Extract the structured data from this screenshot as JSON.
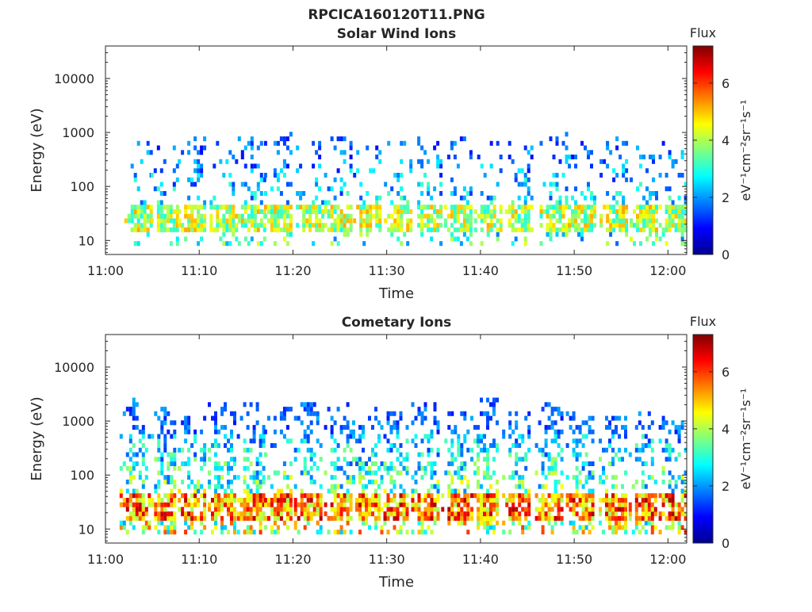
{
  "figure": {
    "title": "RPCICA160120T11.PNG"
  },
  "chart_data": [
    {
      "type": "heatmap",
      "title": "Solar Wind Ions",
      "xlabel": "Time",
      "ylabel": "Energy (eV)",
      "x_ticks": [
        "11:00",
        "11:10",
        "11:20",
        "11:30",
        "11:40",
        "11:50",
        "12:00"
      ],
      "xlim_minutes": [
        0,
        62
      ],
      "y_ticks": [
        "10",
        "100",
        "1000",
        "10000"
      ],
      "y_scale": "log",
      "ylim": [
        5.5,
        40000
      ],
      "colorbar": {
        "title": "Flux",
        "label": "eV⁻¹cm⁻²sr⁻¹s⁻¹",
        "ticks": [
          "0",
          "2",
          "4",
          "6"
        ],
        "range": [
          0,
          7.3
        ]
      },
      "bursts_minute": [
        3.7,
        6.5,
        9.4,
        12.8,
        15.8,
        18.6,
        22,
        25,
        28.1,
        31.4,
        34.6,
        37.8,
        41,
        44.3,
        48,
        51,
        54.4,
        57.6,
        60.7
      ],
      "peak_flux": 5.2,
      "max_energy_eV": 800
    },
    {
      "type": "heatmap",
      "title": "Cometary Ions",
      "xlabel": "Time",
      "ylabel": "Energy (eV)",
      "x_ticks": [
        "11:00",
        "11:10",
        "11:20",
        "11:30",
        "11:40",
        "11:50",
        "12:00"
      ],
      "xlim_minutes": [
        0,
        62
      ],
      "y_ticks": [
        "10",
        "100",
        "1000",
        "10000"
      ],
      "y_scale": "log",
      "ylim": [
        5.5,
        40000
      ],
      "colorbar": {
        "title": "Flux",
        "label": "eV⁻¹cm⁻²sr⁻¹s⁻¹",
        "ticks": [
          "0",
          "2",
          "4",
          "6"
        ],
        "range": [
          0,
          7.3
        ]
      },
      "bursts_minute": [
        3.2,
        6.2,
        9.4,
        12.6,
        15.7,
        18.6,
        21.8,
        25,
        28,
        31,
        34.3,
        37.5,
        40.6,
        44,
        47.5,
        50.8,
        54.3,
        57.5,
        60.7
      ],
      "peak_flux": 7,
      "max_energy_eV": 1800
    }
  ]
}
